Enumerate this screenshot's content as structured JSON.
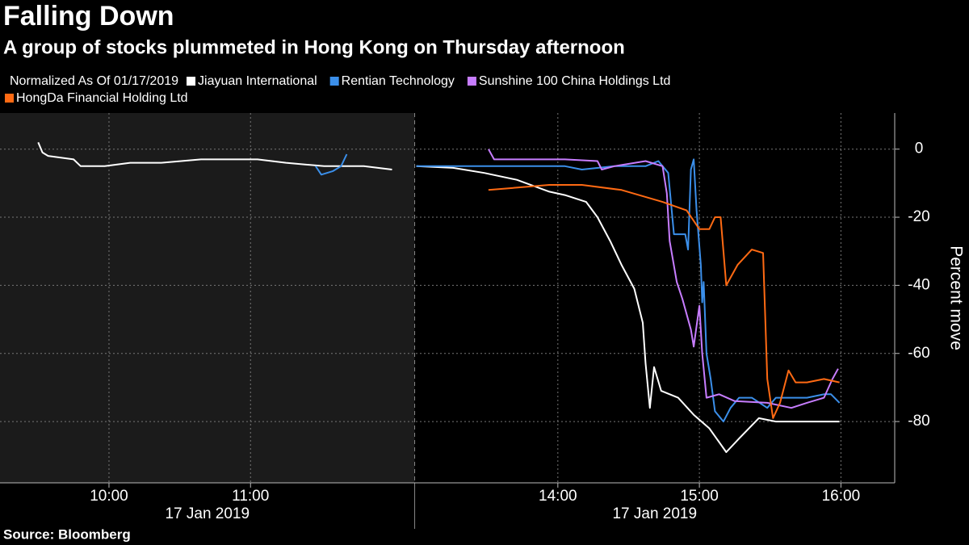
{
  "chart_data": {
    "type": "line",
    "title": "Falling Down",
    "subtitle": "A group of stocks plummeted in Hong Kong on Thursday afternoon",
    "legend_title": "Normalized As Of 01/17/2019",
    "y_label": "Percent move",
    "x_date_labels": [
      "17 Jan 2019",
      "17 Jan 2019"
    ],
    "source": "Source: Bloomberg",
    "xlim": [
      9.23,
      16.38
    ],
    "session_break": [
      12,
      13
    ],
    "xticks": [
      {
        "value": 10,
        "label": "10:00"
      },
      {
        "value": 11,
        "label": "11:00"
      },
      {
        "value": 14,
        "label": "14:00"
      },
      {
        "value": 15,
        "label": "15:00"
      },
      {
        "value": 16,
        "label": "16:00"
      }
    ],
    "ylim": [
      -98,
      10.6
    ],
    "yticks": [
      0,
      -20,
      -40,
      -60,
      -80
    ],
    "grid": true,
    "series": [
      {
        "name": "Jiayuan International",
        "color": "#ffffff",
        "x": [
          9.5,
          9.53,
          9.57,
          9.75,
          9.8,
          9.97,
          10.15,
          10.37,
          10.65,
          10.95,
          11.05,
          11.25,
          11.52,
          11.8,
          12.0,
          null,
          13.0,
          13.26,
          13.48,
          13.71,
          13.94,
          14.05,
          14.2,
          14.28,
          14.37,
          14.45,
          14.54,
          14.6,
          14.62,
          14.65,
          14.68,
          14.73,
          14.85,
          14.96,
          15.07,
          15.19,
          15.28,
          15.42,
          15.54,
          15.76,
          15.99
        ],
        "values": [
          2,
          -1,
          -2,
          -3,
          -5,
          -5,
          -4,
          -4,
          -3,
          -3,
          -3,
          -4,
          -5,
          -5,
          -6,
          null,
          -5,
          -5.5,
          -7,
          -9,
          -12.5,
          -13.5,
          -15.5,
          -20,
          -27,
          -34,
          -41,
          -51,
          -63,
          -76,
          -64,
          -71,
          -73,
          -78,
          -82,
          -89,
          -85,
          -79,
          -80,
          -80,
          -80
        ]
      },
      {
        "name": "Rentian Technology",
        "color": "#3b8fea",
        "x": [
          11.46,
          11.5,
          11.58,
          11.64,
          11.68,
          null,
          13.0,
          13.48,
          14.05,
          14.17,
          14.4,
          14.62,
          14.71,
          14.78,
          14.82,
          14.9,
          14.92,
          14.94,
          14.96,
          14.98,
          15.01,
          15.02,
          15.03,
          15.05,
          15.08,
          15.11,
          15.17,
          15.22,
          15.28,
          15.37,
          15.48,
          15.54,
          15.76,
          15.88,
          15.93,
          15.99
        ],
        "values": [
          -5,
          -7.5,
          -6.5,
          -5,
          -1.5,
          null,
          -5,
          -5,
          -5,
          -6,
          -5,
          -5,
          -3.5,
          -7,
          -25,
          -25,
          -29.5,
          -6,
          -3,
          -18,
          -34,
          -45,
          -39,
          -60,
          -67.5,
          -77,
          -80,
          -76,
          -73,
          -73,
          -76,
          -73,
          -73,
          -72,
          -72,
          -74.5
        ]
      },
      {
        "name": "Sunshine 100 China Holdings Ltd",
        "color": "#c77dff",
        "x": [
          13.51,
          13.55,
          14.05,
          14.28,
          14.31,
          14.4,
          14.62,
          14.74,
          14.77,
          14.79,
          14.84,
          14.88,
          14.94,
          14.96,
          15.0,
          15.02,
          15.05,
          15.14,
          15.25,
          15.48,
          15.65,
          15.76,
          15.88,
          15.94,
          15.98
        ],
        "values": [
          0,
          -3,
          -3,
          -3.5,
          -6,
          -5,
          -3.5,
          -5,
          -13,
          -27,
          -39,
          -44,
          -53,
          -58,
          -46,
          -60,
          -73,
          -72,
          -74,
          -74.5,
          -76,
          -74.5,
          -73,
          -67.5,
          -64.5
        ]
      },
      {
        "name": "HongDa Financial Holding Ltd",
        "color": "#ff6a13",
        "x": [
          13.51,
          13.94,
          14.17,
          14.45,
          14.74,
          14.91,
          15.0,
          15.07,
          15.11,
          15.15,
          15.19,
          15.27,
          15.37,
          15.45,
          15.48,
          15.52,
          15.57,
          15.63,
          15.68,
          15.76,
          15.88,
          15.99
        ],
        "values": [
          -12,
          -10.5,
          -10.5,
          -12,
          -15.5,
          -18,
          -23.5,
          -23.5,
          -20,
          -20,
          -40,
          -34,
          -29.5,
          -30.5,
          -67.5,
          -79,
          -74.5,
          -65,
          -68.5,
          -68.5,
          -67.5,
          -68.5
        ]
      }
    ]
  }
}
